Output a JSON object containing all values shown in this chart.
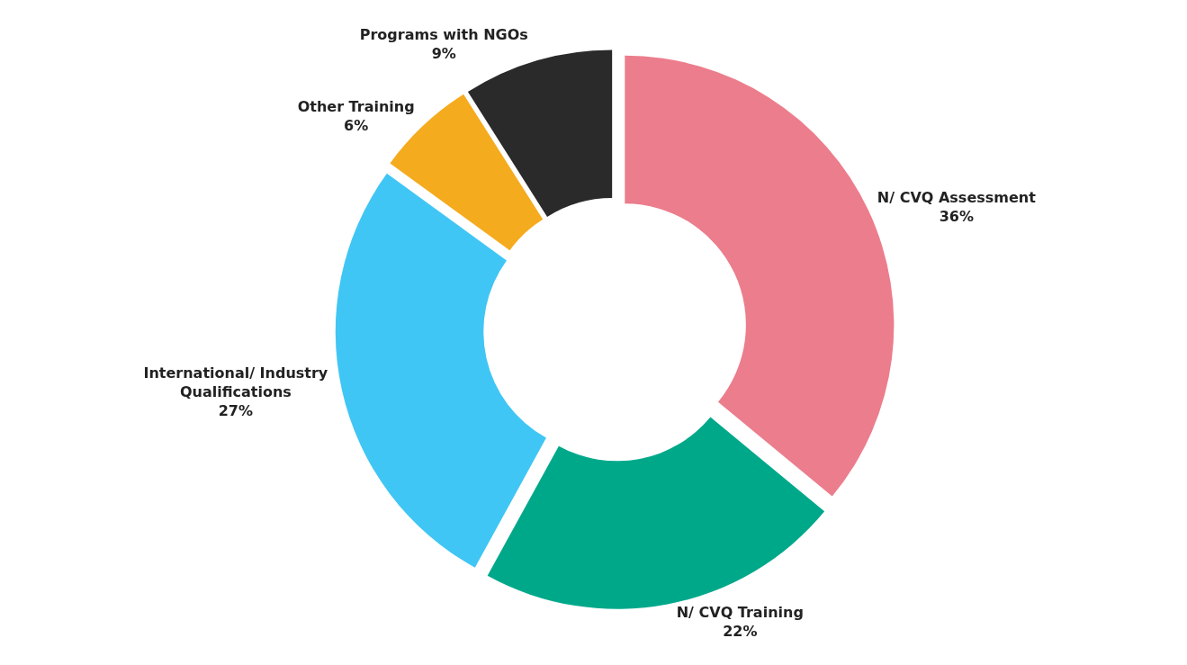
{
  "chart_data": {
    "type": "donut",
    "categories": [
      "N/ CVQ Assessment",
      "N/ CVQ Training",
      "International/ Industry Qualifications",
      "Other Training",
      "Programs with NGOs"
    ],
    "values": [
      36,
      22,
      27,
      6,
      9
    ],
    "value_labels": [
      "36%",
      "22%",
      "27%",
      "6%",
      "9%"
    ],
    "colors": [
      "#ec7d8c",
      "#00a88a",
      "#40c6f4",
      "#f5ab1e",
      "#2a2a2a"
    ],
    "legend": false
  }
}
